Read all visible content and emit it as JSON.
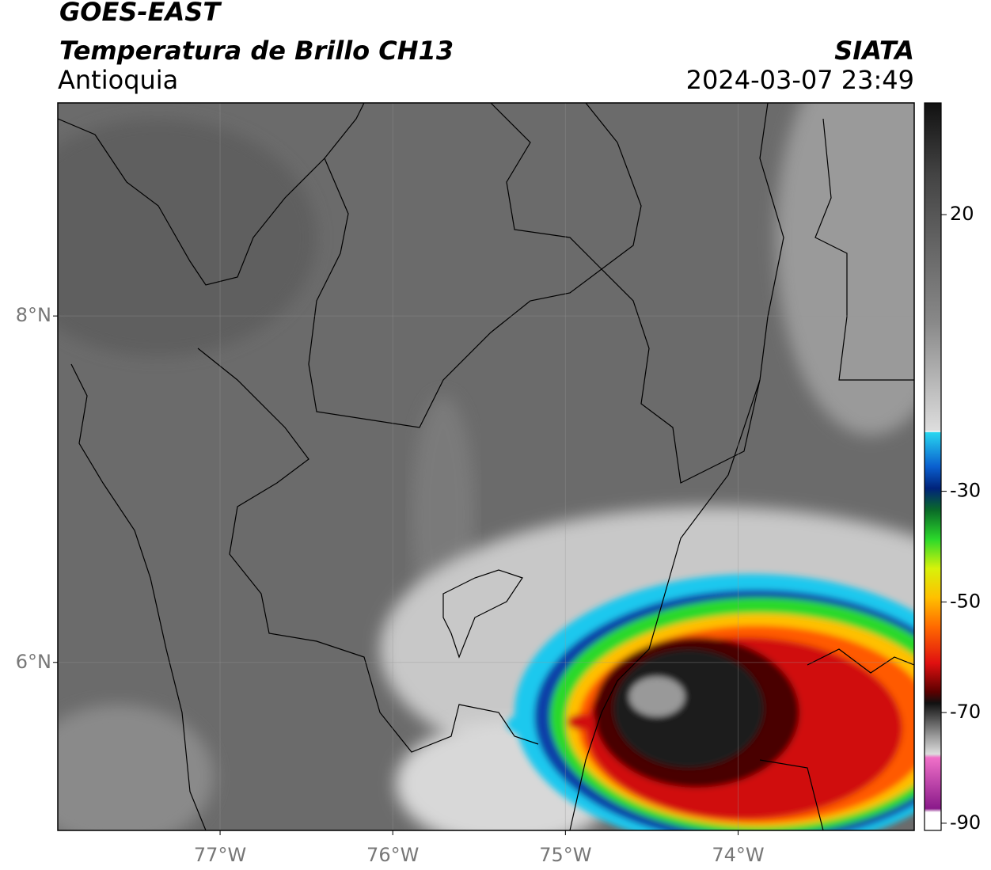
{
  "header": {
    "satellite": "GOES-EAST",
    "product": "Temperatura de Brillo CH13",
    "region": "Antioquia",
    "agency": "SIATA",
    "datetime": "2024-03-07 23:49"
  },
  "map": {
    "xlim": [
      -77.94,
      -72.98
    ],
    "ylim": [
      5.03,
      9.23
    ],
    "grid": true,
    "xticks": [
      {
        "value": -77,
        "label": "77°W"
      },
      {
        "value": -76,
        "label": "76°W"
      },
      {
        "value": -75,
        "label": "75°W"
      },
      {
        "value": -74,
        "label": "74°W"
      }
    ],
    "yticks": [
      {
        "value": 8,
        "label": "8°N"
      },
      {
        "value": 6,
        "label": "6°N"
      }
    ]
  },
  "colorbar": {
    "lim": [
      -91.3,
      40.2
    ],
    "ticks": [
      20,
      -30,
      -50,
      -70,
      -90
    ]
  }
}
